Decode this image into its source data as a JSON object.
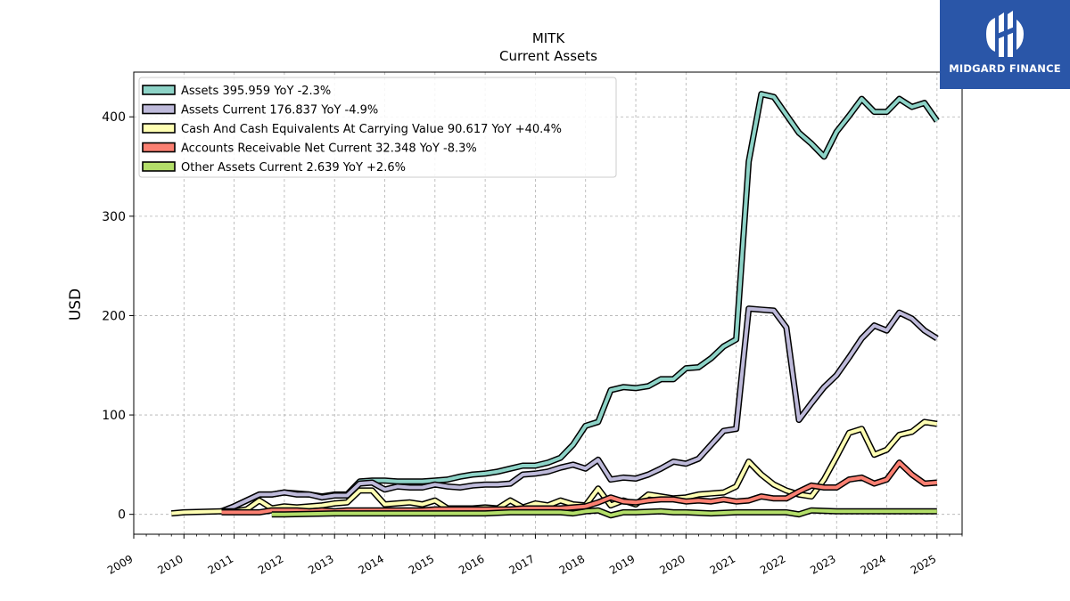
{
  "logo": {
    "text": "MIDGARD FINANCE",
    "icon": "midgard-logo-icon",
    "background": "#2a56a8"
  },
  "chart_data": {
    "type": "line",
    "title": "MITK",
    "subtitle": "Current  Assets",
    "ylabel": "USD",
    "xlabel": "",
    "xlim": [
      2009.0,
      2025.5
    ],
    "ylim": [
      -20,
      445
    ],
    "yticks": [
      0,
      100,
      200,
      300,
      400
    ],
    "xticks": [
      "2009",
      "2010",
      "2011",
      "2012",
      "2013",
      "2014",
      "2015",
      "2016",
      "2017",
      "2018",
      "2019",
      "2020",
      "2021",
      "2022",
      "2023",
      "2024",
      "2025"
    ],
    "grid": true,
    "legend_position": "top-left",
    "series": [
      {
        "name": "Assets  395.959 YoY -2.3%",
        "color": "#8dd3c7",
        "points": [
          [
            2010.75,
            3
          ],
          [
            2011.0,
            8
          ],
          [
            2011.5,
            20
          ],
          [
            2011.75,
            20
          ],
          [
            2012.0,
            22
          ],
          [
            2012.25,
            21
          ],
          [
            2012.5,
            20
          ],
          [
            2012.75,
            18
          ],
          [
            2013.0,
            20
          ],
          [
            2013.25,
            20
          ],
          [
            2013.5,
            33
          ],
          [
            2013.75,
            34
          ],
          [
            2014.0,
            34
          ],
          [
            2014.25,
            33
          ],
          [
            2014.5,
            33
          ],
          [
            2014.75,
            33
          ],
          [
            2015.0,
            34
          ],
          [
            2015.25,
            35
          ],
          [
            2015.5,
            38
          ],
          [
            2015.75,
            40
          ],
          [
            2016.0,
            41
          ],
          [
            2016.25,
            43
          ],
          [
            2016.5,
            46
          ],
          [
            2016.75,
            49
          ],
          [
            2017.0,
            49
          ],
          [
            2017.25,
            52
          ],
          [
            2017.5,
            57
          ],
          [
            2017.75,
            70
          ],
          [
            2018.0,
            89
          ],
          [
            2018.25,
            93
          ],
          [
            2018.5,
            125
          ],
          [
            2018.75,
            128
          ],
          [
            2019.0,
            127
          ],
          [
            2019.25,
            129
          ],
          [
            2019.5,
            136
          ],
          [
            2019.75,
            136
          ],
          [
            2020.0,
            147
          ],
          [
            2020.25,
            148
          ],
          [
            2020.5,
            157
          ],
          [
            2020.75,
            169
          ],
          [
            2021.0,
            176
          ],
          [
            2021.25,
            355
          ],
          [
            2021.5,
            423
          ],
          [
            2021.75,
            420
          ],
          [
            2022.0,
            402
          ],
          [
            2022.25,
            384
          ],
          [
            2022.5,
            373
          ],
          [
            2022.75,
            360
          ],
          [
            2023.0,
            385
          ],
          [
            2023.25,
            401
          ],
          [
            2023.5,
            418
          ],
          [
            2023.75,
            405
          ],
          [
            2024.0,
            405
          ],
          [
            2024.25,
            418
          ],
          [
            2024.5,
            410
          ],
          [
            2024.75,
            414
          ],
          [
            2025.0,
            396
          ]
        ]
      },
      {
        "name": "Assets Current  176.837 YoY -4.9%",
        "color": "#bebada",
        "points": [
          [
            2010.75,
            3
          ],
          [
            2011.0,
            8
          ],
          [
            2011.5,
            20
          ],
          [
            2011.75,
            20
          ],
          [
            2012.0,
            22
          ],
          [
            2012.25,
            20
          ],
          [
            2012.5,
            20
          ],
          [
            2012.75,
            17
          ],
          [
            2013.0,
            19
          ],
          [
            2013.25,
            19
          ],
          [
            2013.5,
            31
          ],
          [
            2013.75,
            32
          ],
          [
            2014.0,
            25
          ],
          [
            2014.25,
            28
          ],
          [
            2014.5,
            27
          ],
          [
            2014.75,
            27
          ],
          [
            2015.0,
            30
          ],
          [
            2015.25,
            28
          ],
          [
            2015.5,
            27
          ],
          [
            2015.75,
            29
          ],
          [
            2016.0,
            30
          ],
          [
            2016.25,
            30
          ],
          [
            2016.5,
            31
          ],
          [
            2016.75,
            40
          ],
          [
            2017.0,
            41
          ],
          [
            2017.25,
            43
          ],
          [
            2017.5,
            47
          ],
          [
            2017.75,
            50
          ],
          [
            2018.0,
            46
          ],
          [
            2018.25,
            55
          ],
          [
            2018.5,
            35
          ],
          [
            2018.75,
            37
          ],
          [
            2019.0,
            36
          ],
          [
            2019.25,
            40
          ],
          [
            2019.5,
            46
          ],
          [
            2019.75,
            53
          ],
          [
            2020.0,
            51
          ],
          [
            2020.25,
            56
          ],
          [
            2020.5,
            70
          ],
          [
            2020.75,
            84
          ],
          [
            2021.0,
            86
          ],
          [
            2021.25,
            207
          ],
          [
            2021.5,
            206
          ],
          [
            2021.75,
            205
          ],
          [
            2022.0,
            188
          ],
          [
            2022.25,
            95
          ],
          [
            2022.5,
            112
          ],
          [
            2022.75,
            128
          ],
          [
            2023.0,
            140
          ],
          [
            2023.25,
            158
          ],
          [
            2023.5,
            177
          ],
          [
            2023.75,
            190
          ],
          [
            2024.0,
            185
          ],
          [
            2024.25,
            203
          ],
          [
            2024.5,
            197
          ],
          [
            2024.75,
            185
          ],
          [
            2025.0,
            177
          ]
        ]
      },
      {
        "name": "Cash And Cash Equivalents At Carrying Value  90.617 YoY +40.4%",
        "color": "#ffffb3",
        "points": [
          [
            2009.75,
            1
          ],
          [
            2010.0,
            2
          ],
          [
            2010.75,
            3
          ],
          [
            2011.0,
            3
          ],
          [
            2011.25,
            5
          ],
          [
            2011.5,
            14
          ],
          [
            2011.75,
            6
          ],
          [
            2012.0,
            8
          ],
          [
            2012.25,
            7
          ],
          [
            2012.5,
            8
          ],
          [
            2012.75,
            9
          ],
          [
            2013.0,
            11
          ],
          [
            2013.25,
            12
          ],
          [
            2013.5,
            24
          ],
          [
            2013.75,
            24
          ],
          [
            2014.0,
            10
          ],
          [
            2014.25,
            11
          ],
          [
            2014.5,
            12
          ],
          [
            2014.75,
            10
          ],
          [
            2015.0,
            14
          ],
          [
            2015.25,
            6
          ],
          [
            2015.5,
            6
          ],
          [
            2015.75,
            6
          ],
          [
            2016.0,
            7
          ],
          [
            2016.25,
            6
          ],
          [
            2016.5,
            14
          ],
          [
            2016.75,
            7
          ],
          [
            2017.0,
            11
          ],
          [
            2017.25,
            9
          ],
          [
            2017.5,
            14
          ],
          [
            2017.75,
            10
          ],
          [
            2018.0,
            9
          ],
          [
            2018.25,
            26
          ],
          [
            2018.5,
            9
          ],
          [
            2018.75,
            14
          ],
          [
            2019.0,
            10
          ],
          [
            2019.25,
            20
          ],
          [
            2019.5,
            18
          ],
          [
            2019.75,
            16
          ],
          [
            2020.0,
            17
          ],
          [
            2020.25,
            20
          ],
          [
            2020.5,
            21
          ],
          [
            2020.75,
            22
          ],
          [
            2021.0,
            28
          ],
          [
            2021.25,
            53
          ],
          [
            2021.5,
            40
          ],
          [
            2021.75,
            30
          ],
          [
            2022.0,
            24
          ],
          [
            2022.25,
            20
          ],
          [
            2022.5,
            18
          ],
          [
            2022.75,
            35
          ],
          [
            2023.0,
            58
          ],
          [
            2023.25,
            82
          ],
          [
            2023.5,
            86
          ],
          [
            2023.75,
            60
          ],
          [
            2024.0,
            65
          ],
          [
            2024.25,
            80
          ],
          [
            2024.5,
            83
          ],
          [
            2024.75,
            93
          ],
          [
            2025.0,
            91
          ]
        ]
      },
      {
        "name": "Accounts Receivable Net Current  32.348 YoY -8.3%",
        "color": "#fb8072",
        "points": [
          [
            2010.75,
            2
          ],
          [
            2011.0,
            2
          ],
          [
            2011.5,
            2
          ],
          [
            2011.75,
            4
          ],
          [
            2012.0,
            4
          ],
          [
            2012.25,
            4
          ],
          [
            2012.5,
            3
          ],
          [
            2012.75,
            4
          ],
          [
            2013.0,
            3
          ],
          [
            2013.25,
            4
          ],
          [
            2013.5,
            4
          ],
          [
            2013.75,
            4
          ],
          [
            2014.0,
            4
          ],
          [
            2014.25,
            4
          ],
          [
            2014.5,
            4
          ],
          [
            2014.75,
            4
          ],
          [
            2015.0,
            5
          ],
          [
            2015.25,
            5
          ],
          [
            2015.5,
            5
          ],
          [
            2015.75,
            5
          ],
          [
            2016.0,
            5
          ],
          [
            2016.25,
            5
          ],
          [
            2016.5,
            5
          ],
          [
            2016.75,
            6
          ],
          [
            2017.0,
            6
          ],
          [
            2017.25,
            6
          ],
          [
            2017.5,
            6
          ],
          [
            2017.75,
            7
          ],
          [
            2018.0,
            8
          ],
          [
            2018.25,
            12
          ],
          [
            2018.5,
            17
          ],
          [
            2018.75,
            13
          ],
          [
            2019.0,
            12
          ],
          [
            2019.25,
            14
          ],
          [
            2019.5,
            15
          ],
          [
            2019.75,
            15
          ],
          [
            2020.0,
            13
          ],
          [
            2020.25,
            14
          ],
          [
            2020.5,
            13
          ],
          [
            2020.75,
            15
          ],
          [
            2021.0,
            13
          ],
          [
            2021.25,
            14
          ],
          [
            2021.5,
            18
          ],
          [
            2021.75,
            16
          ],
          [
            2022.0,
            16
          ],
          [
            2022.25,
            23
          ],
          [
            2022.5,
            29
          ],
          [
            2022.75,
            27
          ],
          [
            2023.0,
            27
          ],
          [
            2023.25,
            35
          ],
          [
            2023.5,
            37
          ],
          [
            2023.75,
            31
          ],
          [
            2024.0,
            35
          ],
          [
            2024.25,
            52
          ],
          [
            2024.5,
            40
          ],
          [
            2024.75,
            31
          ],
          [
            2025.0,
            32
          ]
        ]
      },
      {
        "name": "Other Assets Current  2.639 YoY +2.6%",
        "color": "#b3de69",
        "points": [
          [
            2011.75,
            0
          ],
          [
            2012.0,
            0
          ],
          [
            2013.0,
            1
          ],
          [
            2014.0,
            1
          ],
          [
            2015.0,
            1
          ],
          [
            2016.0,
            1
          ],
          [
            2016.5,
            2
          ],
          [
            2017.0,
            2
          ],
          [
            2017.5,
            2
          ],
          [
            2017.75,
            1
          ],
          [
            2018.0,
            3
          ],
          [
            2018.25,
            4
          ],
          [
            2018.5,
            -1
          ],
          [
            2018.75,
            2
          ],
          [
            2019.0,
            2
          ],
          [
            2019.5,
            3
          ],
          [
            2019.75,
            2
          ],
          [
            2020.0,
            2
          ],
          [
            2020.5,
            1
          ],
          [
            2021.0,
            2
          ],
          [
            2021.5,
            2
          ],
          [
            2022.0,
            2
          ],
          [
            2022.25,
            0
          ],
          [
            2022.5,
            4
          ],
          [
            2023.0,
            3
          ],
          [
            2023.5,
            3
          ],
          [
            2024.0,
            3
          ],
          [
            2024.5,
            3
          ],
          [
            2025.0,
            3
          ]
        ]
      }
    ]
  }
}
